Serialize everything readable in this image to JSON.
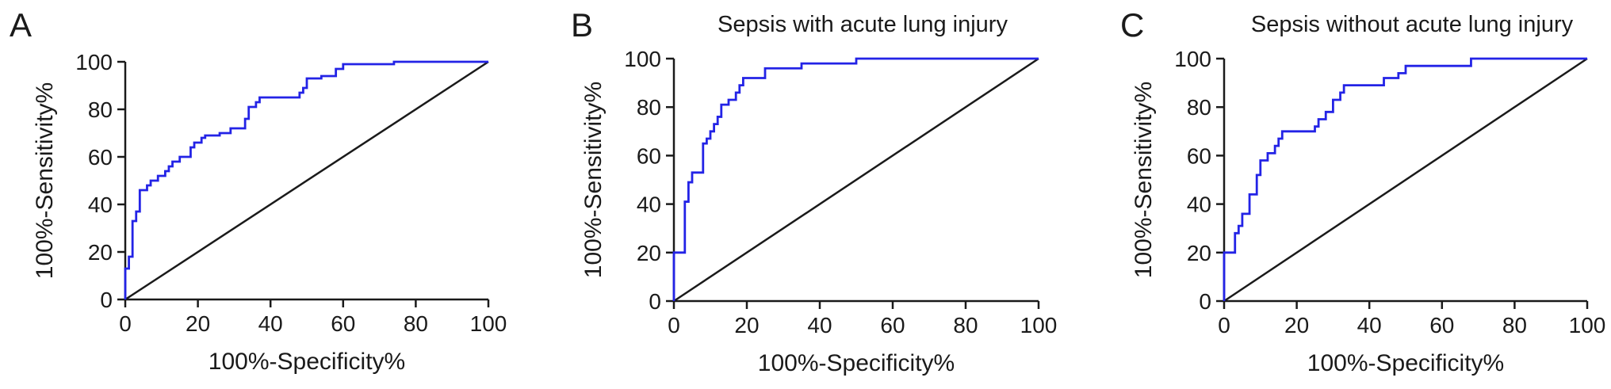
{
  "chart_data": [
    {
      "type": "line",
      "panel_label": "A",
      "title": "",
      "xlabel": "100%-Specificity%",
      "ylabel": "100%-Sensitivity%",
      "xlim": [
        0,
        100
      ],
      "ylim": [
        0,
        100
      ],
      "xticks": [
        0,
        20,
        40,
        60,
        80,
        100
      ],
      "yticks": [
        0,
        20,
        40,
        60,
        80,
        100
      ],
      "grid": false,
      "colors": {
        "roc": "#2323e6",
        "reference": "#1a1a1a"
      },
      "series": [
        {
          "values_xy": [
            [
              0,
              0
            ],
            [
              0,
              13
            ],
            [
              1,
              13
            ],
            [
              1,
              18
            ],
            [
              2,
              18
            ],
            [
              2,
              33
            ],
            [
              3,
              33
            ],
            [
              3,
              37
            ],
            [
              4,
              37
            ],
            [
              4,
              46
            ],
            [
              6,
              46
            ],
            [
              6,
              48
            ],
            [
              7,
              48
            ],
            [
              7,
              50
            ],
            [
              9,
              50
            ],
            [
              9,
              52
            ],
            [
              11,
              52
            ],
            [
              11,
              54
            ],
            [
              12,
              54
            ],
            [
              12,
              56
            ],
            [
              13,
              56
            ],
            [
              13,
              58
            ],
            [
              15,
              58
            ],
            [
              15,
              60
            ],
            [
              18,
              60
            ],
            [
              18,
              64
            ],
            [
              19,
              64
            ],
            [
              19,
              66
            ],
            [
              21,
              66
            ],
            [
              21,
              68
            ],
            [
              22,
              68
            ],
            [
              22,
              69
            ],
            [
              26,
              69
            ],
            [
              26,
              70
            ],
            [
              29,
              70
            ],
            [
              29,
              72
            ],
            [
              33,
              72
            ],
            [
              33,
              76
            ],
            [
              34,
              76
            ],
            [
              34,
              81
            ],
            [
              36,
              81
            ],
            [
              36,
              83
            ],
            [
              37,
              83
            ],
            [
              37,
              85
            ],
            [
              48,
              85
            ],
            [
              48,
              87
            ],
            [
              49,
              87
            ],
            [
              49,
              89
            ],
            [
              50,
              89
            ],
            [
              50,
              93
            ],
            [
              54,
              93
            ],
            [
              54,
              94
            ],
            [
              58,
              94
            ],
            [
              58,
              97
            ],
            [
              60,
              97
            ],
            [
              60,
              99
            ],
            [
              74,
              99
            ],
            [
              74,
              100
            ],
            [
              100,
              100
            ]
          ]
        },
        {
          "values_xy": [
            [
              0,
              0
            ],
            [
              100,
              100
            ]
          ]
        }
      ]
    },
    {
      "type": "line",
      "panel_label": "B",
      "title": "Sepsis with acute lung injury",
      "xlabel": "100%-Specificity%",
      "ylabel": "100%-Sensitivity%",
      "xlim": [
        0,
        100
      ],
      "ylim": [
        0,
        100
      ],
      "xticks": [
        0,
        20,
        40,
        60,
        80,
        100
      ],
      "yticks": [
        0,
        20,
        40,
        60,
        80,
        100
      ],
      "grid": false,
      "colors": {
        "roc": "#2323e6",
        "reference": "#1a1a1a"
      },
      "series": [
        {
          "values_xy": [
            [
              0,
              0
            ],
            [
              0,
              20
            ],
            [
              3,
              20
            ],
            [
              3,
              41
            ],
            [
              4,
              41
            ],
            [
              4,
              49
            ],
            [
              5,
              49
            ],
            [
              5,
              53
            ],
            [
              8,
              53
            ],
            [
              8,
              65
            ],
            [
              9,
              65
            ],
            [
              9,
              67
            ],
            [
              10,
              67
            ],
            [
              10,
              70
            ],
            [
              11,
              70
            ],
            [
              11,
              73
            ],
            [
              12,
              73
            ],
            [
              12,
              76
            ],
            [
              13,
              76
            ],
            [
              13,
              81
            ],
            [
              15,
              81
            ],
            [
              15,
              83
            ],
            [
              17,
              83
            ],
            [
              17,
              86
            ],
            [
              18,
              86
            ],
            [
              18,
              89
            ],
            [
              19,
              89
            ],
            [
              19,
              92
            ],
            [
              25,
              92
            ],
            [
              25,
              96
            ],
            [
              35,
              96
            ],
            [
              35,
              98
            ],
            [
              50,
              98
            ],
            [
              50,
              100
            ],
            [
              100,
              100
            ]
          ]
        },
        {
          "values_xy": [
            [
              0,
              0
            ],
            [
              100,
              100
            ]
          ]
        }
      ]
    },
    {
      "type": "line",
      "panel_label": "C",
      "title": "Sepsis without acute lung injury",
      "xlabel": "100%-Specificity%",
      "ylabel": "100%-Sensitivity%",
      "xlim": [
        0,
        100
      ],
      "ylim": [
        0,
        100
      ],
      "xticks": [
        0,
        20,
        40,
        60,
        80,
        100
      ],
      "yticks": [
        0,
        20,
        40,
        60,
        80,
        100
      ],
      "grid": false,
      "colors": {
        "roc": "#2323e6",
        "reference": "#1a1a1a"
      },
      "series": [
        {
          "values_xy": [
            [
              0,
              0
            ],
            [
              0,
              20
            ],
            [
              3,
              20
            ],
            [
              3,
              28
            ],
            [
              4,
              28
            ],
            [
              4,
              31
            ],
            [
              5,
              31
            ],
            [
              5,
              36
            ],
            [
              7,
              36
            ],
            [
              7,
              44
            ],
            [
              9,
              44
            ],
            [
              9,
              52
            ],
            [
              10,
              52
            ],
            [
              10,
              58
            ],
            [
              12,
              58
            ],
            [
              12,
              61
            ],
            [
              14,
              61
            ],
            [
              14,
              64
            ],
            [
              15,
              64
            ],
            [
              15,
              67
            ],
            [
              16,
              67
            ],
            [
              16,
              70
            ],
            [
              25,
              70
            ],
            [
              25,
              72
            ],
            [
              26,
              72
            ],
            [
              26,
              75
            ],
            [
              28,
              75
            ],
            [
              28,
              78
            ],
            [
              30,
              78
            ],
            [
              30,
              83
            ],
            [
              32,
              83
            ],
            [
              32,
              86
            ],
            [
              33,
              86
            ],
            [
              33,
              89
            ],
            [
              44,
              89
            ],
            [
              44,
              92
            ],
            [
              48,
              92
            ],
            [
              48,
              94
            ],
            [
              50,
              94
            ],
            [
              50,
              97
            ],
            [
              68,
              97
            ],
            [
              68,
              100
            ],
            [
              100,
              100
            ]
          ]
        },
        {
          "values_xy": [
            [
              0,
              0
            ],
            [
              100,
              100
            ]
          ]
        }
      ]
    }
  ]
}
